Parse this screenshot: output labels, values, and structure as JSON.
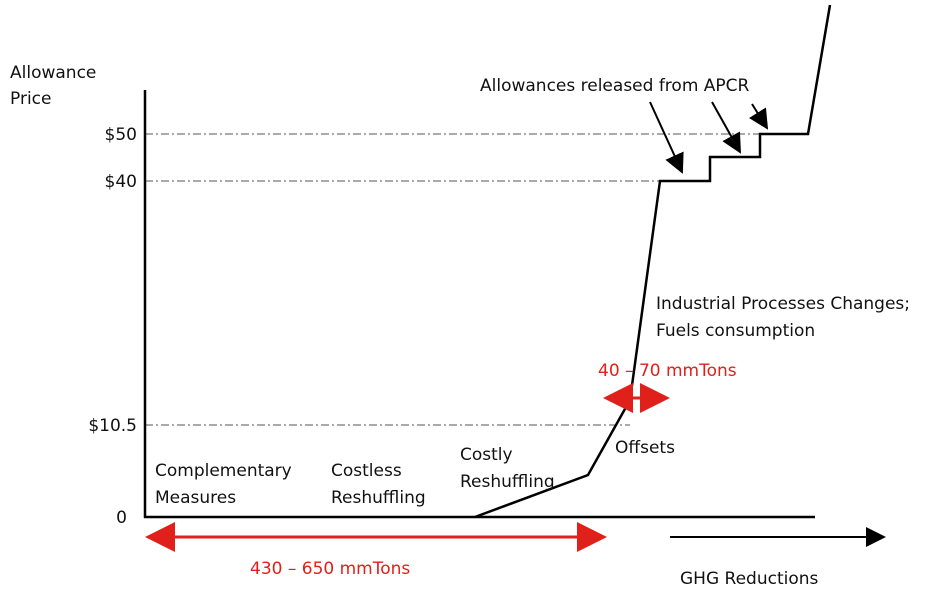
{
  "y_axis": {
    "title": [
      "Allowance",
      "Price"
    ],
    "ticks": [
      "0",
      "$10.5",
      "$40",
      "$50"
    ]
  },
  "x_axis": {
    "title": "GHG Reductions"
  },
  "annotations": {
    "apcr": "Allowances released from APCR",
    "industrial": [
      "Industrial Processes Changes;",
      "Fuels consumption"
    ],
    "offsets": "Offsets",
    "range_small": "40 – 70 mmTons",
    "range_large": "430 – 650 mmTons"
  },
  "segments": [
    [
      "Complementary",
      "Measures"
    ],
    [
      "Costless",
      "Reshuffling"
    ],
    [
      "Costly",
      "Reshuffling"
    ]
  ]
}
